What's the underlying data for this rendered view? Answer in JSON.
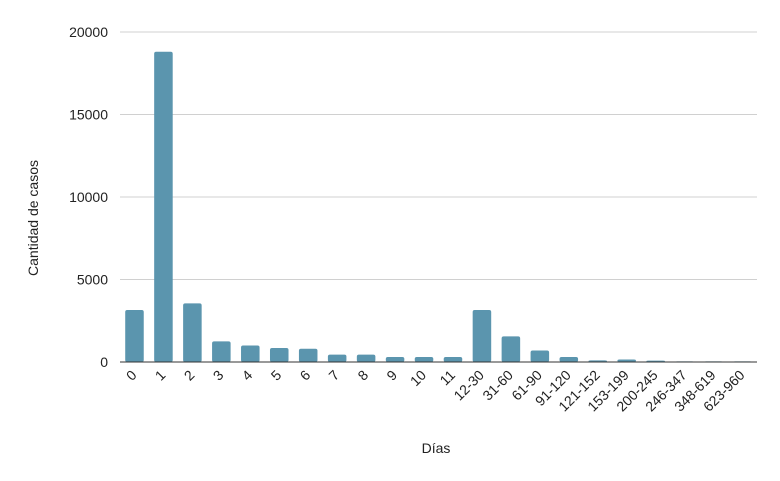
{
  "chart_data": {
    "type": "bar",
    "title": "",
    "xlabel": "Días",
    "ylabel": "Cantidad de casos",
    "ylim": [
      0,
      20000
    ],
    "yticks": [
      0,
      5000,
      10000,
      15000,
      20000
    ],
    "grid": true,
    "legend": "none",
    "bar_color": "#5b95ae",
    "grid_color": "#d0d0d0",
    "categories": [
      "0",
      "1",
      "2",
      "3",
      "4",
      "5",
      "6",
      "7",
      "8",
      "9",
      "10",
      "11",
      "12-30",
      "31-60",
      "61-90",
      "91-120",
      "121-152",
      "153-199",
      "200-245",
      "246-347",
      "348-619",
      "623-960"
    ],
    "values": [
      3150,
      18800,
      3550,
      1250,
      1000,
      850,
      800,
      450,
      450,
      300,
      300,
      300,
      3150,
      1550,
      700,
      300,
      100,
      150,
      80,
      20,
      10,
      10
    ]
  }
}
